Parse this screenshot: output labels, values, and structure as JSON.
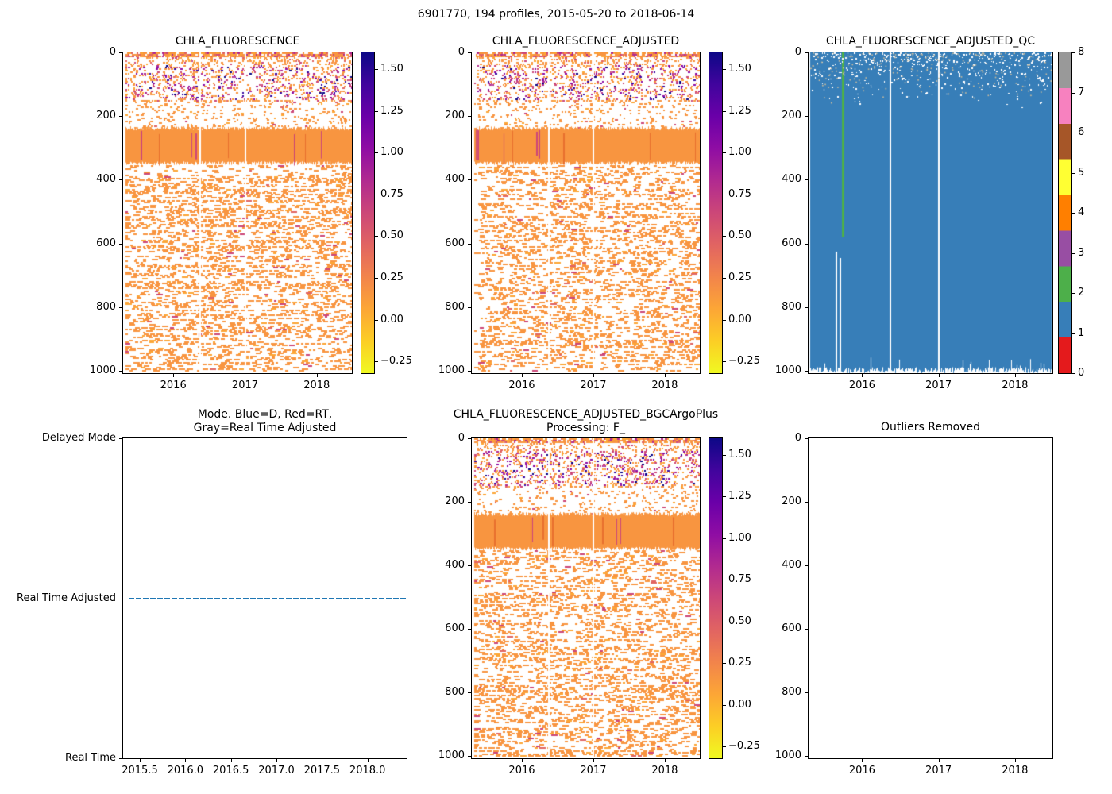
{
  "figure": {
    "title": "6901770, 194 profiles, 2015-05-20 to 2018-06-14",
    "float_id": "6901770",
    "n_profiles": 194,
    "date_start": "2015-05-20",
    "date_end": "2018-06-14"
  },
  "colors": {
    "qc_fill": "#377eb8",
    "qc_green": "#4daf4a",
    "mode_line": "#1f77b4",
    "plasma_r_top_to_bottom": [
      "#0d0887",
      "#41049d",
      "#6a00a8",
      "#8f0da4",
      "#b12a90",
      "#cc4778",
      "#e16462",
      "#f2844b",
      "#fca636",
      "#fcce25",
      "#f0f921"
    ],
    "set1_flags_0_to_8": [
      "#e41a1c",
      "#377eb8",
      "#4daf4a",
      "#984ea3",
      "#ff7f00",
      "#ffff33",
      "#a65628",
      "#f781bf",
      "#999999"
    ]
  },
  "chart_data": [
    {
      "type": "heatmap",
      "title": "CHLA_FLUORESCENCE",
      "x_range": [
        2015.3,
        2018.49
      ],
      "x_ticks": [
        {
          "v": 2016,
          "t": "2016"
        },
        {
          "v": 2017,
          "t": "2017"
        },
        {
          "v": 2018,
          "t": "2018"
        }
      ],
      "y_range": [
        0,
        1007
      ],
      "y_inverted": true,
      "y_ticks": [
        {
          "v": 0,
          "t": "0"
        },
        {
          "v": 200,
          "t": "200"
        },
        {
          "v": 400,
          "t": "400"
        },
        {
          "v": 600,
          "t": "600"
        },
        {
          "v": 800,
          "t": "800"
        },
        {
          "v": 1000,
          "t": "1000"
        }
      ],
      "colorbar": {
        "colormap": "plasma_r",
        "vmin": -0.32,
        "vmax": 1.6,
        "ticks": [
          {
            "v": -0.25,
            "t": "−0.25"
          },
          {
            "v": 0,
            "t": "0.00"
          },
          {
            "v": 0.25,
            "t": "0.25"
          },
          {
            "v": 0.5,
            "t": "0.50"
          },
          {
            "v": 0.75,
            "t": "0.75"
          },
          {
            "v": 1,
            "t": "1.00"
          },
          {
            "v": 1.25,
            "t": "1.25"
          },
          {
            "v": 1.5,
            "t": "1.50"
          }
        ]
      },
      "structure": {
        "bands": [
          {
            "depth_m": [
              0,
              10
            ],
            "fill": "dense mixed speckle, values ~0 to 0.3"
          },
          {
            "depth_m": [
              10,
              150
            ],
            "fill": "speckle with elevated chl-a 0.5-1.6 (magenta/purple/navy dots)"
          },
          {
            "depth_m": [
              150,
              240
            ],
            "fill": "sparse orange speckle, values ~0"
          },
          {
            "depth_m": [
              240,
              350
            ],
            "fill": "solid orange band, values ~0.05"
          },
          {
            "depth_m": [
              350,
              1000
            ],
            "fill": "dashed orange speckle, values ~0"
          }
        ],
        "gap_x_fractions": [
          0.333,
          0.53
        ],
        "data_start_x_fraction": 0.012
      }
    },
    {
      "type": "heatmap",
      "title": "CHLA_FLUORESCENCE_ADJUSTED",
      "x_range": [
        2015.3,
        2018.49
      ],
      "x_ticks": [
        {
          "v": 2016,
          "t": "2016"
        },
        {
          "v": 2017,
          "t": "2017"
        },
        {
          "v": 2018,
          "t": "2018"
        }
      ],
      "y_range": [
        0,
        1007
      ],
      "y_inverted": true,
      "y_ticks": [
        {
          "v": 0,
          "t": "0"
        },
        {
          "v": 200,
          "t": "200"
        },
        {
          "v": 400,
          "t": "400"
        },
        {
          "v": 600,
          "t": "600"
        },
        {
          "v": 800,
          "t": "800"
        },
        {
          "v": 1000,
          "t": "1000"
        }
      ],
      "colorbar": {
        "colormap": "plasma_r",
        "vmin": -0.32,
        "vmax": 1.6,
        "ticks": [
          {
            "v": -0.25,
            "t": "−0.25"
          },
          {
            "v": 0,
            "t": "0.00"
          },
          {
            "v": 0.25,
            "t": "0.25"
          },
          {
            "v": 0.5,
            "t": "0.50"
          },
          {
            "v": 0.75,
            "t": "0.75"
          },
          {
            "v": 1,
            "t": "1.00"
          },
          {
            "v": 1.25,
            "t": "1.25"
          },
          {
            "v": 1.5,
            "t": "1.50"
          }
        ]
      },
      "structure": {
        "bands": [
          {
            "depth_m": [
              0,
              10
            ],
            "fill": "dense mixed speckle, values ~0 to 0.3"
          },
          {
            "depth_m": [
              10,
              150
            ],
            "fill": "speckle with elevated chl-a 0.5-1.6 (magenta/purple/navy dots)"
          },
          {
            "depth_m": [
              150,
              240
            ],
            "fill": "sparse orange speckle, values ~0"
          },
          {
            "depth_m": [
              240,
              350
            ],
            "fill": "solid orange band, values ~0.05"
          },
          {
            "depth_m": [
              350,
              1000
            ],
            "fill": "dashed orange speckle, values ~0"
          }
        ],
        "gap_x_fractions": [
          0.333,
          0.53
        ],
        "data_start_x_fraction": 0.012
      }
    },
    {
      "type": "heatmap",
      "title": "CHLA_FLUORESCENCE_ADJUSTED_QC",
      "x_range": [
        2015.3,
        2018.49
      ],
      "x_ticks": [
        {
          "v": 2016,
          "t": "2016"
        },
        {
          "v": 2017,
          "t": "2017"
        },
        {
          "v": 2018,
          "t": "2018"
        }
      ],
      "y_range": [
        0,
        1007
      ],
      "y_inverted": true,
      "y_ticks": [
        {
          "v": 0,
          "t": "0"
        },
        {
          "v": 200,
          "t": "200"
        },
        {
          "v": 400,
          "t": "400"
        },
        {
          "v": 600,
          "t": "600"
        },
        {
          "v": 800,
          "t": "800"
        },
        {
          "v": 1000,
          "t": "1000"
        }
      ],
      "colorbar": {
        "palette": "set1",
        "vmin": 0,
        "vmax": 8,
        "ticks": [
          {
            "v": 0,
            "t": "0"
          },
          {
            "v": 1,
            "t": "1"
          },
          {
            "v": 2,
            "t": "2"
          },
          {
            "v": 3,
            "t": "3"
          },
          {
            "v": 4,
            "t": "4"
          },
          {
            "v": 5,
            "t": "5"
          },
          {
            "v": 6,
            "t": "6"
          },
          {
            "v": 7,
            "t": "7"
          },
          {
            "v": 8,
            "t": "8"
          }
        ]
      },
      "structure": {
        "dominant_flag": 1,
        "green_stripe": {
          "flag": 2,
          "x_fraction": 0.138,
          "depth_m": [
            0,
            580
          ]
        },
        "white_spikes": [
          {
            "x_fraction": 0.112,
            "depth_m": [
              625,
              1007
            ]
          },
          {
            "x_fraction": 0.128,
            "depth_m": [
              645,
              1007
            ]
          }
        ],
        "gap_x_fractions": [
          0.333,
          0.53
        ],
        "bottom_edge_depth_m": [
          985,
          1007
        ],
        "sparse_missing_speckle_depth_m": [
          0,
          185
        ]
      }
    },
    {
      "type": "line",
      "title_lines": [
        "Mode. Blue=D, Red=RT,",
        "Gray=Real Time Adjusted"
      ],
      "x_range": [
        2015.317,
        2018.43
      ],
      "x_ticks": [
        {
          "v": 2015.5,
          "t": "2015.5"
        },
        {
          "v": 2016,
          "t": "2016.0"
        },
        {
          "v": 2016.5,
          "t": "2016.5"
        },
        {
          "v": 2017,
          "t": "2017.0"
        },
        {
          "v": 2017.5,
          "t": "2017.5"
        },
        {
          "v": 2018,
          "t": "2018.0"
        }
      ],
      "y_categories": [
        "Real Time",
        "Real Time Adjusted",
        "Delayed Mode"
      ],
      "series": [
        {
          "name": "mode",
          "value": "Real Time Adjusted",
          "x_start": 2015.38,
          "x_end": 2018.43,
          "style": "dense-dashed",
          "color": "#1f77b4"
        }
      ]
    },
    {
      "type": "heatmap",
      "title_lines": [
        "CHLA_FLUORESCENCE_ADJUSTED_BGCArgoPlus",
        "Processing: F_"
      ],
      "x_range": [
        2015.3,
        2018.49
      ],
      "x_ticks": [
        {
          "v": 2016,
          "t": "2016"
        },
        {
          "v": 2017,
          "t": "2017"
        },
        {
          "v": 2018,
          "t": "2018"
        }
      ],
      "y_range": [
        0,
        1007
      ],
      "y_inverted": true,
      "y_ticks": [
        {
          "v": 0,
          "t": "0"
        },
        {
          "v": 200,
          "t": "200"
        },
        {
          "v": 400,
          "t": "400"
        },
        {
          "v": 600,
          "t": "600"
        },
        {
          "v": 800,
          "t": "800"
        },
        {
          "v": 1000,
          "t": "1000"
        }
      ],
      "colorbar": {
        "colormap": "plasma_r",
        "vmin": -0.32,
        "vmax": 1.6,
        "ticks": [
          {
            "v": -0.25,
            "t": "−0.25"
          },
          {
            "v": 0,
            "t": "0.00"
          },
          {
            "v": 0.25,
            "t": "0.25"
          },
          {
            "v": 0.5,
            "t": "0.50"
          },
          {
            "v": 0.75,
            "t": "0.75"
          },
          {
            "v": 1,
            "t": "1.00"
          },
          {
            "v": 1.25,
            "t": "1.25"
          },
          {
            "v": 1.5,
            "t": "1.50"
          }
        ]
      },
      "structure": {
        "bands": [
          {
            "depth_m": [
              0,
              10
            ],
            "fill": "dense mixed speckle, values ~0 to 0.3"
          },
          {
            "depth_m": [
              10,
              150
            ],
            "fill": "speckle with elevated chl-a 0.5-1.6 (magenta/purple/navy dots)"
          },
          {
            "depth_m": [
              150,
              240
            ],
            "fill": "sparse orange speckle, values ~0"
          },
          {
            "depth_m": [
              240,
              350
            ],
            "fill": "solid orange band, values ~0.05"
          },
          {
            "depth_m": [
              350,
              1000
            ],
            "fill": "dashed orange speckle, values ~0"
          }
        ],
        "gap_x_fractions": [
          0.333,
          0.53
        ],
        "data_start_x_fraction": 0.012
      }
    },
    {
      "type": "empty",
      "title": "Outliers Removed",
      "x_range": [
        2015.3,
        2018.49
      ],
      "x_ticks": [
        {
          "v": 2016,
          "t": "2016"
        },
        {
          "v": 2017,
          "t": "2017"
        },
        {
          "v": 2018,
          "t": "2018"
        }
      ],
      "y_range": [
        0,
        1007
      ],
      "y_inverted": true,
      "y_ticks": [
        {
          "v": 0,
          "t": "0"
        },
        {
          "v": 200,
          "t": "200"
        },
        {
          "v": 400,
          "t": "400"
        },
        {
          "v": 600,
          "t": "600"
        },
        {
          "v": 800,
          "t": "800"
        },
        {
          "v": 1000,
          "t": "1000"
        }
      ]
    }
  ]
}
